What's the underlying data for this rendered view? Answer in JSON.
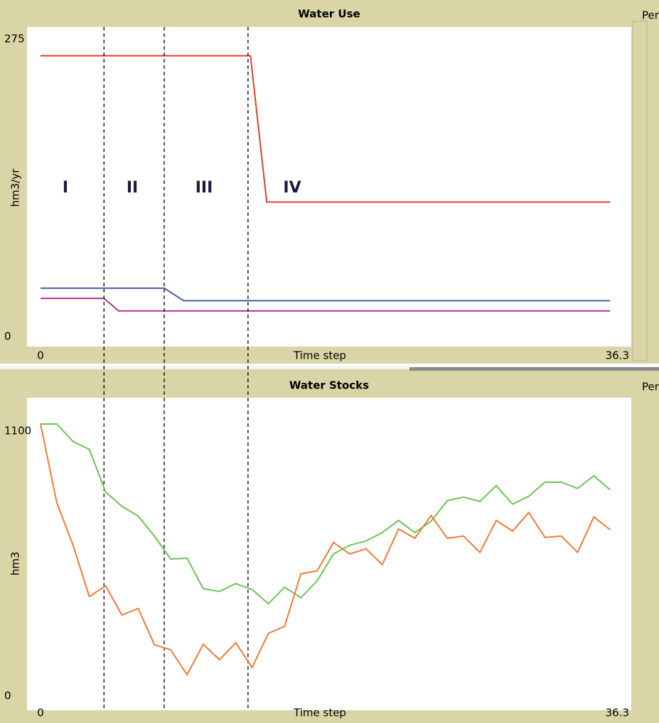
{
  "chart_data": [
    {
      "type": "line",
      "title": "Water Use",
      "legend_title": "Pen",
      "xlabel": "Time step",
      "ylabel": "hm3/yr",
      "xlim": [
        0,
        36.3
      ],
      "ylim": [
        0,
        275
      ],
      "xticks": [
        0,
        36.3
      ],
      "yticks": [
        0,
        275
      ],
      "annotations": [
        "I",
        "II",
        "III",
        "IV"
      ],
      "vlines": [
        3.9,
        7.6,
        12.75
      ],
      "series": [
        {
          "color": "#e0402a",
          "x": [
            0,
            12.9,
            13.9,
            35
          ],
          "values": [
            254,
            254,
            125,
            125
          ]
        },
        {
          "color": "#4a5aa8",
          "x": [
            0,
            7.6,
            8.8,
            35
          ],
          "values": [
            49,
            49,
            38,
            38
          ]
        },
        {
          "color": "#b0358a",
          "x": [
            0,
            3.9,
            4.8,
            35
          ],
          "values": [
            40,
            40,
            29,
            29
          ]
        }
      ]
    },
    {
      "type": "line",
      "title": "Water Stocks",
      "legend_title": "Pen",
      "xlabel": "Time step",
      "ylabel": "hm3",
      "xlim": [
        0,
        36.3
      ],
      "ylim": [
        0,
        1100
      ],
      "xticks": [
        0,
        36.3
      ],
      "yticks": [
        0,
        1100
      ],
      "series": [
        {
          "color": "#6cc25a",
          "x": [
            0,
            1,
            2,
            3,
            4,
            5,
            6,
            7,
            8,
            9,
            10,
            11,
            12,
            13,
            14,
            15,
            16,
            17,
            18,
            19,
            20,
            21,
            22,
            23,
            24,
            25,
            26,
            27,
            28,
            29,
            30,
            31,
            32,
            33,
            34,
            35
          ],
          "values": [
            1100,
            1100,
            1031,
            1000,
            832,
            776,
            737,
            658,
            568,
            571,
            451,
            440,
            471,
            448,
            392,
            457,
            415,
            482,
            588,
            622,
            639,
            672,
            720,
            672,
            717,
            798,
            812,
            795,
            857,
            784,
            815,
            871,
            871,
            846,
            896,
            840
          ]
        },
        {
          "color": "#f07a3a",
          "x": [
            0,
            1,
            2,
            3,
            4,
            5,
            6,
            7,
            8,
            9,
            10,
            11,
            12,
            13,
            14,
            15,
            16,
            17,
            18,
            19,
            20,
            21,
            22,
            23,
            24,
            25,
            26,
            27,
            28,
            29,
            30,
            31,
            32,
            33,
            34,
            35
          ],
          "values": [
            1100,
            790,
            622,
            420,
            462,
            347,
            373,
            230,
            210,
            112,
            232,
            171,
            238,
            140,
            275,
            303,
            510,
            521,
            633,
            588,
            608,
            546,
            686,
            650,
            739,
            650,
            658,
            594,
            720,
            678,
            751,
            653,
            658,
            594,
            734,
            683
          ]
        }
      ]
    }
  ]
}
